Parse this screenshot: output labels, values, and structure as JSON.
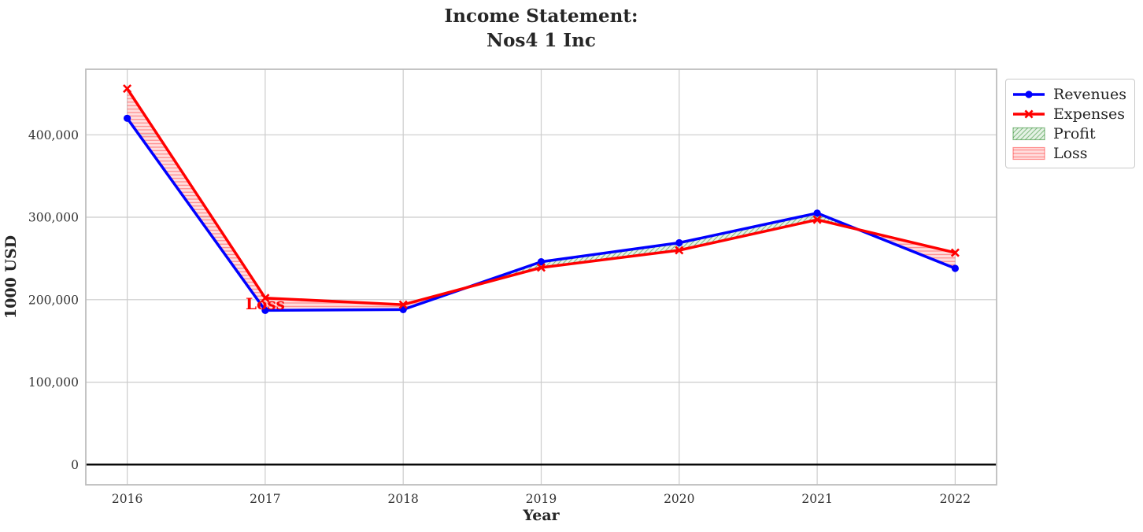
{
  "chart_data": {
    "type": "line",
    "title": "Income Statement:\nNos4 1 Inc",
    "xlabel": "Year",
    "ylabel": "1000 USD",
    "x": [
      2016,
      2017,
      2018,
      2019,
      2020,
      2021,
      2022
    ],
    "x_tick_labels": [
      "2016",
      "2017",
      "2018",
      "2019",
      "2020",
      "2021",
      "2022"
    ],
    "series": [
      {
        "name": "Revenues",
        "color": "#0000ff",
        "marker": "circle",
        "values": [
          420000,
          187000,
          188000,
          246000,
          269000,
          305000,
          238000
        ]
      },
      {
        "name": "Expenses",
        "color": "#ff0000",
        "marker": "x",
        "values": [
          456000,
          202000,
          194000,
          239000,
          260000,
          297000,
          257000
        ]
      }
    ],
    "fills": [
      {
        "name": "Profit",
        "color": "#008000",
        "hatch": "diagonal",
        "rule": "revenues_above_expenses"
      },
      {
        "name": "Loss",
        "color": "#ff0000",
        "hatch": "horizontal",
        "rule": "expenses_above_revenues"
      }
    ],
    "annotations": [
      {
        "text": "Loss",
        "x": 2017,
        "y": 195000,
        "color": "#ff0000"
      }
    ],
    "yticks": [
      {
        "value": 0,
        "label": "0"
      },
      {
        "value": 100000,
        "label": "100,000"
      },
      {
        "value": 200000,
        "label": "200,000"
      },
      {
        "value": 300000,
        "label": "300,000"
      },
      {
        "value": 400000,
        "label": "400,000"
      }
    ],
    "xlim": [
      2015.7,
      2022.3
    ],
    "ylim": [
      -24500,
      479500
    ],
    "grid": true,
    "zero_line": true,
    "legend": {
      "position": "outside-upper-right",
      "entries": [
        "Revenues",
        "Expenses",
        "Profit",
        "Loss"
      ]
    }
  },
  "style": {
    "grid_color": "#cccccc",
    "spine_color": "#bdbdbd",
    "zero_line_color": "#000000",
    "text_color": "#262626",
    "tick_color": "#333333",
    "background": "#ffffff"
  }
}
